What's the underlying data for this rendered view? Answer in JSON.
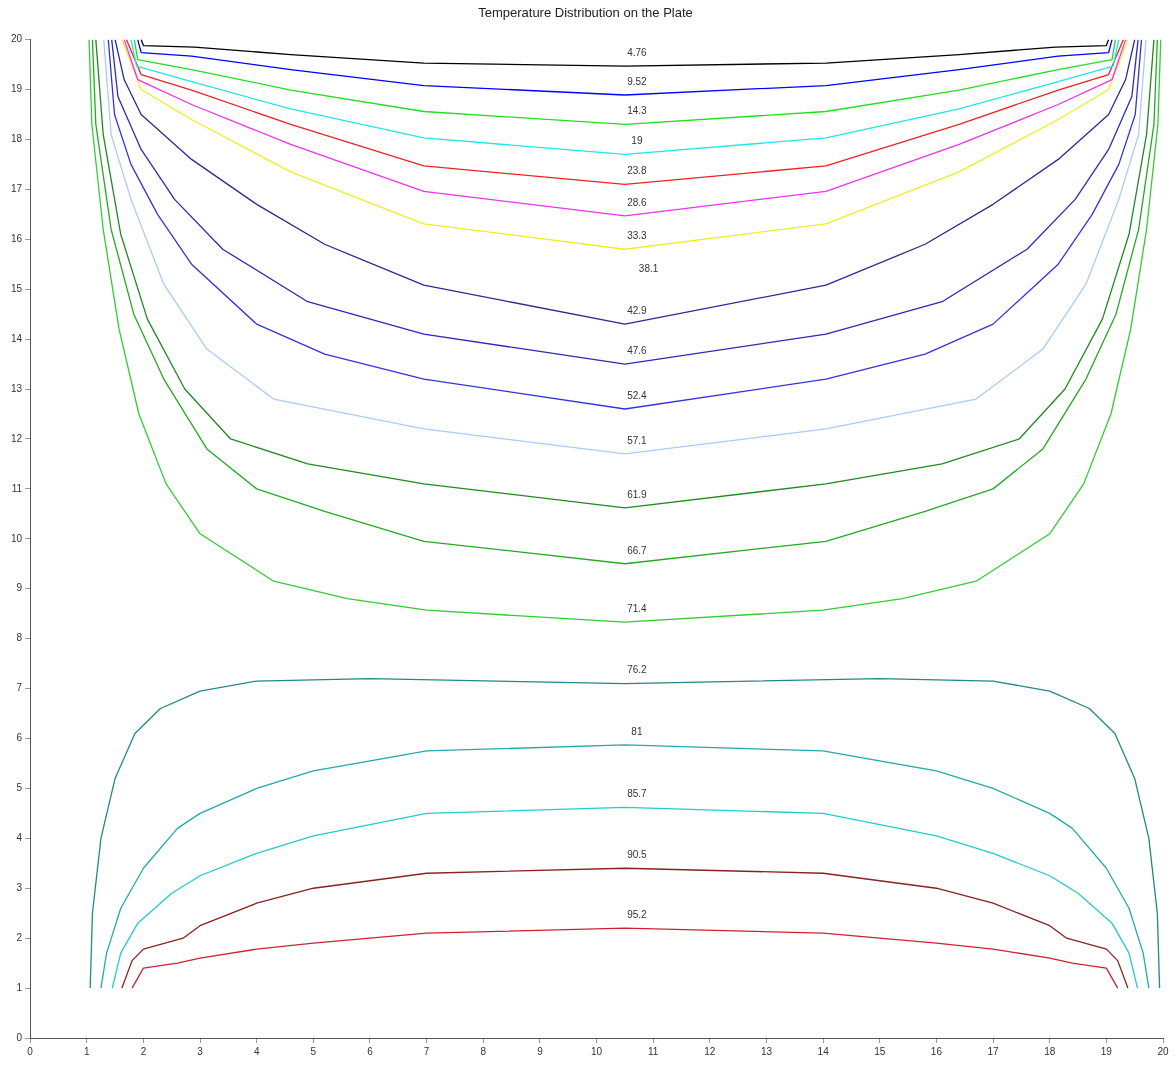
{
  "chart_data": {
    "type": "line",
    "title": "Temperature Distribution on the Plate",
    "xlim": [
      0,
      20
    ],
    "ylim": [
      0,
      20
    ],
    "xticks": [
      0,
      1,
      2,
      3,
      4,
      5,
      6,
      7,
      8,
      9,
      10,
      11,
      12,
      13,
      14,
      15,
      16,
      17,
      18,
      19,
      20
    ],
    "yticks": [
      0,
      1,
      2,
      3,
      4,
      5,
      6,
      7,
      8,
      9,
      10,
      11,
      12,
      13,
      14,
      15,
      16,
      17,
      18,
      19,
      20
    ],
    "grid": false,
    "legend": false,
    "marker": "none",
    "line_style": "solid",
    "annotations": [
      "38.1"
    ],
    "series": [
      {
        "name": "4.76",
        "color": "#000000",
        "x": [
          1.96,
          2.0,
          2.9,
          4.6,
          6.95,
          10.5,
          14.05,
          16.4,
          18.1,
          19.0,
          19.04
        ],
        "values": [
          20,
          19.88,
          19.85,
          19.7,
          19.53,
          19.47,
          19.53,
          19.7,
          19.85,
          19.88,
          20
        ]
      },
      {
        "name": "9.52",
        "color": "#0000ff",
        "x": [
          1.9,
          1.96,
          2.85,
          4.6,
          6.95,
          10.5,
          14.05,
          16.4,
          18.15,
          19.04,
          19.1
        ],
        "values": [
          20,
          19.74,
          19.67,
          19.4,
          19.08,
          18.89,
          19.08,
          19.4,
          19.67,
          19.74,
          20
        ]
      },
      {
        "name": "14.3",
        "color": "#22dd22",
        "x": [
          1.84,
          1.9,
          2.85,
          4.6,
          6.95,
          10.5,
          14.05,
          16.4,
          18.15,
          19.1,
          19.16
        ],
        "values": [
          20,
          19.6,
          19.4,
          18.99,
          18.56,
          18.3,
          18.56,
          18.99,
          19.4,
          19.6,
          20
        ]
      },
      {
        "name": "19",
        "color": "#22e5e5",
        "x": [
          1.78,
          1.88,
          2.85,
          4.6,
          6.95,
          10.5,
          14.05,
          16.4,
          18.15,
          19.12,
          19.22
        ],
        "values": [
          20,
          19.47,
          19.16,
          18.61,
          18.03,
          17.7,
          18.03,
          18.61,
          19.16,
          19.47,
          20
        ]
      },
      {
        "name": "23.8",
        "color": "#ee2222",
        "x": [
          1.7,
          1.96,
          2.85,
          4.6,
          6.95,
          10.5,
          14.05,
          16.4,
          18.15,
          19.04,
          19.3
        ],
        "values": [
          20,
          19.3,
          18.99,
          18.3,
          17.47,
          17.1,
          17.47,
          18.3,
          18.99,
          19.3,
          20
        ]
      },
      {
        "name": "28.6",
        "color": "#ee33ee",
        "x": [
          1.66,
          1.9,
          2.85,
          4.6,
          6.95,
          10.5,
          14.05,
          16.4,
          18.15,
          19.1,
          19.34
        ],
        "values": [
          20,
          19.2,
          18.7,
          17.9,
          16.96,
          16.47,
          16.96,
          17.9,
          18.7,
          19.2,
          20
        ]
      },
      {
        "name": "33.3",
        "color": "#eeee22",
        "x": [
          1.62,
          1.96,
          2.85,
          4.6,
          6.95,
          10.5,
          14.05,
          16.4,
          18.15,
          19.04,
          19.38
        ],
        "values": [
          20,
          19.0,
          18.4,
          17.35,
          16.31,
          15.8,
          16.31,
          17.35,
          18.4,
          19.0,
          20
        ]
      },
      {
        "name": "42.9",
        "color": "#2a2a90",
        "x": [
          1.5,
          1.66,
          1.96,
          2.85,
          4.0,
          5.2,
          6.95,
          10.5,
          14.05,
          15.8,
          17.0,
          18.15,
          19.04,
          19.34,
          19.5
        ],
        "values": [
          20,
          19.2,
          18.5,
          17.6,
          16.7,
          15.9,
          15.08,
          14.3,
          15.08,
          15.9,
          16.7,
          17.6,
          18.5,
          19.2,
          20
        ]
      },
      {
        "name": "47.6",
        "color": "#2a2ab8",
        "x": [
          1.44,
          1.55,
          1.96,
          2.55,
          3.4,
          4.9,
          6.95,
          10.5,
          14.05,
          16.1,
          17.6,
          18.45,
          19.04,
          19.45,
          19.56
        ],
        "values": [
          20,
          18.86,
          17.8,
          16.8,
          15.8,
          14.75,
          14.1,
          13.5,
          14.1,
          14.75,
          15.8,
          16.8,
          17.8,
          18.86,
          20
        ]
      },
      {
        "name": "52.4",
        "color": "#3333dd",
        "x": [
          1.38,
          1.49,
          1.78,
          2.25,
          2.85,
          4.0,
          5.2,
          6.95,
          10.5,
          14.05,
          15.8,
          17.0,
          18.15,
          18.75,
          19.22,
          19.51,
          19.62
        ],
        "values": [
          20,
          18.5,
          17.5,
          16.5,
          15.5,
          14.3,
          13.7,
          13.2,
          12.6,
          13.2,
          13.7,
          14.3,
          15.5,
          16.5,
          17.5,
          18.5,
          20
        ]
      },
      {
        "name": "57.1",
        "color": "#aaccf5",
        "x": [
          1.3,
          1.43,
          1.78,
          2.36,
          3.12,
          4.3,
          6.95,
          10.5,
          14.05,
          16.7,
          17.88,
          18.64,
          19.22,
          19.57,
          19.7
        ],
        "values": [
          20,
          18.1,
          16.8,
          15.1,
          13.8,
          12.8,
          12.2,
          11.7,
          12.2,
          12.8,
          13.8,
          15.1,
          16.8,
          18.1,
          20
        ]
      },
      {
        "name": "61.9",
        "color": "#228822",
        "x": [
          1.16,
          1.29,
          1.6,
          2.07,
          2.73,
          3.54,
          4.9,
          6.95,
          10.5,
          14.05,
          16.1,
          17.46,
          18.27,
          18.93,
          19.4,
          19.71,
          19.84
        ],
        "values": [
          20,
          18.1,
          16.1,
          14.4,
          13.0,
          12.0,
          11.5,
          11.1,
          10.62,
          11.1,
          11.5,
          12.0,
          13.0,
          14.4,
          16.1,
          18.1,
          20
        ]
      },
      {
        "name": "66.7",
        "color": "#22aa22",
        "x": [
          1.1,
          1.16,
          1.43,
          1.83,
          2.36,
          3.12,
          4.0,
          5.2,
          6.95,
          10.5,
          14.05,
          15.8,
          17.0,
          17.88,
          18.64,
          19.17,
          19.57,
          19.84,
          19.9
        ],
        "values": [
          20,
          18.3,
          16.2,
          14.5,
          13.2,
          11.8,
          11.0,
          10.55,
          9.95,
          9.5,
          9.95,
          10.55,
          11.0,
          11.8,
          13.2,
          14.5,
          16.2,
          18.3,
          20
        ]
      },
      {
        "name": "71.4",
        "color": "#33cc33",
        "x": [
          1.04,
          1.09,
          1.29,
          1.57,
          1.92,
          2.4,
          3.0,
          4.3,
          5.6,
          7,
          10.5,
          14,
          15.4,
          16.7,
          18,
          18.6,
          19.08,
          19.43,
          19.71,
          19.91,
          19.96
        ],
        "values": [
          20,
          18.3,
          16.2,
          14.2,
          12.5,
          11.1,
          10.1,
          9.15,
          8.8,
          8.57,
          8.33,
          8.57,
          8.8,
          9.15,
          10.1,
          11.1,
          12.5,
          14.2,
          16.2,
          18.3,
          20
        ]
      },
      {
        "name": "76.2",
        "color": "#228888",
        "x": [
          1.06,
          1.1,
          1.25,
          1.5,
          1.85,
          2.3,
          3,
          4,
          6,
          10.5,
          15,
          17,
          18,
          18.7,
          19.15,
          19.5,
          19.75,
          19.9,
          19.94
        ],
        "values": [
          1.0,
          2.5,
          4.0,
          5.2,
          6.1,
          6.6,
          6.95,
          7.15,
          7.2,
          7.1,
          7.2,
          7.15,
          6.95,
          6.6,
          6.1,
          5.2,
          4.0,
          2.5,
          1.0
        ]
      },
      {
        "name": "81",
        "color": "#22aaaa",
        "x": [
          1.25,
          1.35,
          1.6,
          2.0,
          2.6,
          3.0,
          4,
          5,
          7,
          10.5,
          14,
          16,
          17,
          18,
          18.4,
          19,
          19.4,
          19.65,
          19.75
        ],
        "values": [
          1.0,
          1.7,
          2.6,
          3.4,
          4.2,
          4.5,
          5.0,
          5.35,
          5.75,
          5.87,
          5.75,
          5.35,
          5.0,
          4.5,
          4.2,
          3.4,
          2.6,
          1.7,
          1.0
        ]
      },
      {
        "name": "85.7",
        "color": "#22cccc",
        "x": [
          1.45,
          1.6,
          1.9,
          2.5,
          3,
          4,
          5,
          7,
          10.5,
          14,
          16,
          17,
          18,
          18.5,
          19.1,
          19.4,
          19.55
        ],
        "values": [
          1.0,
          1.7,
          2.3,
          2.9,
          3.25,
          3.7,
          4.05,
          4.5,
          4.62,
          4.5,
          4.05,
          3.7,
          3.25,
          2.9,
          2.3,
          1.7,
          1.0
        ]
      },
      {
        "name": "90.5",
        "color": "#882222",
        "x": [
          1.62,
          1.8,
          2.0,
          2.7,
          3,
          4,
          5,
          7,
          10.5,
          14,
          16,
          17,
          18,
          18.3,
          19.0,
          19.2,
          19.38
        ],
        "values": [
          1.0,
          1.55,
          1.78,
          2.0,
          2.25,
          2.7,
          3.0,
          3.3,
          3.4,
          3.3,
          3.0,
          2.7,
          2.25,
          2.0,
          1.78,
          1.55,
          1.0
        ]
      },
      {
        "name": "95.2",
        "color": "#cc2233",
        "x": [
          1.8,
          2.0,
          2.6,
          3,
          4,
          5,
          7,
          10.5,
          14,
          16,
          17,
          18,
          18.4,
          19.0,
          19.2
        ],
        "values": [
          1.0,
          1.4,
          1.5,
          1.6,
          1.78,
          1.9,
          2.1,
          2.2,
          2.1,
          1.9,
          1.78,
          1.6,
          1.5,
          1.4,
          1.0
        ]
      }
    ]
  }
}
